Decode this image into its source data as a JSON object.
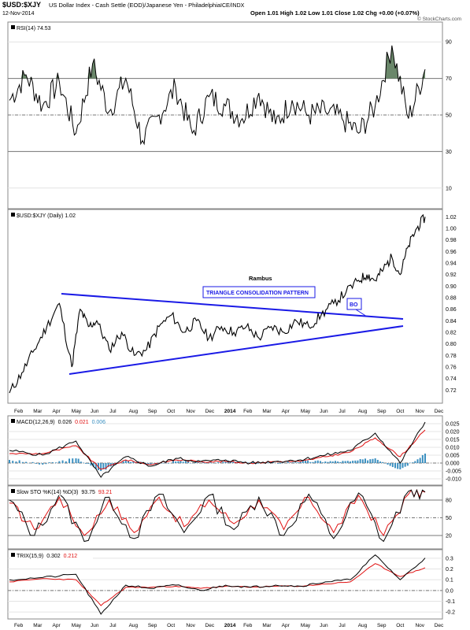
{
  "header": {
    "symbol": "$USD:$XJY",
    "description": "US Dollar Index - Cash Settle (EOD)/Japanese Yen - Philadelphia",
    "exchange": "ICE/INDX",
    "date": "12-Nov-2014",
    "ohlc": "Open 1.01  High 1.02  Low 1.01  Close 1.02  Chg +0.00 (+0.07%)",
    "watermark": "© StockCharts.com"
  },
  "annotations": {
    "rambus": "Rambus",
    "triangle": "TRIANGLE CONSOLIDATION PATTERN",
    "bo": "BO"
  },
  "x_labels_top": [
    "Feb",
    "Mar",
    "Apr",
    "May",
    "Jun",
    "Jul",
    "Aug",
    "Sep",
    "Oct",
    "Nov",
    "Dec",
    "2014",
    "Feb",
    "Mar",
    "Apr",
    "May",
    "Jun",
    "Jul",
    "Aug",
    "Sep",
    "Oct",
    "Nov",
    "Dec"
  ],
  "x_labels_bottom": [
    "Feb",
    "Mar",
    "Apr",
    "May",
    "Jun",
    "Jul",
    "Aug",
    "Sep",
    "Oct",
    "Nov",
    "Dec",
    "2014",
    "Feb",
    "Mar",
    "Apr",
    "May",
    "Jun",
    "Jul",
    "Aug",
    "Sep",
    "Oct",
    "Nov",
    "Dec"
  ],
  "colors": {
    "price": "#000000",
    "rsi": "#000000",
    "rsi_overbought_fill": "#5a7a5a",
    "trendline": "#1a1ae6",
    "signal": "#e01010",
    "histogram": "#3a8fc0",
    "grid": "#d8d8d8"
  },
  "chart_data": [
    {
      "type": "line",
      "id": "rsi",
      "legend": "RSI(14) 74.53",
      "yticks": [
        10,
        30,
        50,
        70,
        90
      ],
      "ylim": [
        0,
        100
      ],
      "reference_lines": [
        30,
        50,
        70
      ],
      "x": [
        0,
        4,
        8,
        12,
        16,
        20,
        24,
        28,
        32,
        36,
        40,
        44,
        48,
        52,
        56,
        60,
        64,
        68,
        72,
        76,
        80,
        84,
        88,
        92,
        96,
        100
      ],
      "values": [
        58,
        72,
        55,
        68,
        40,
        78,
        52,
        70,
        36,
        50,
        65,
        40,
        60,
        55,
        48,
        62,
        45,
        58,
        50,
        52,
        48,
        40,
        55,
        88,
        48,
        75
      ]
    },
    {
      "type": "line",
      "id": "price",
      "legend": "$USD:$XJY (Daily) 1.02",
      "yticks": [
        0.72,
        0.74,
        0.76,
        0.78,
        0.8,
        0.82,
        0.84,
        0.86,
        0.88,
        0.9,
        0.92,
        0.94,
        0.96,
        0.98,
        1.0,
        1.02
      ],
      "ylim": [
        0.7,
        1.03
      ],
      "x": [
        0,
        3,
        6,
        9,
        12,
        15,
        17,
        19,
        21,
        24,
        27,
        30,
        33,
        36,
        39,
        42,
        45,
        48,
        51,
        54,
        57,
        60,
        63,
        66,
        69,
        72,
        75,
        78,
        81,
        84,
        86,
        88,
        90,
        92,
        94,
        96,
        98,
        100
      ],
      "values": [
        0.715,
        0.75,
        0.79,
        0.83,
        0.87,
        0.76,
        0.86,
        0.83,
        0.84,
        0.79,
        0.82,
        0.78,
        0.79,
        0.83,
        0.85,
        0.82,
        0.84,
        0.81,
        0.83,
        0.82,
        0.83,
        0.81,
        0.83,
        0.82,
        0.84,
        0.83,
        0.85,
        0.87,
        0.89,
        0.91,
        0.92,
        0.91,
        0.93,
        0.95,
        0.92,
        0.97,
        1.0,
        1.02
      ]
    },
    {
      "type": "line",
      "id": "macd",
      "legend_name": "MACD(12,26,9)",
      "legend_values": [
        "0.026",
        "0.021",
        "0.006"
      ],
      "yticks": [
        0.025,
        0.02,
        0.015,
        0.01,
        0.005,
        0.0,
        -0.005,
        -0.01
      ],
      "ylim": [
        -0.013,
        0.028
      ],
      "x": [
        0,
        8,
        16,
        22,
        28,
        34,
        40,
        46,
        52,
        58,
        64,
        70,
        76,
        82,
        88,
        94,
        100
      ],
      "series": [
        {
          "values": [
            0.008,
            0.005,
            0.014,
            -0.009,
            0.004,
            -0.002,
            0.003,
            0.001,
            0.002,
            0.0,
            0.001,
            0.002,
            0.005,
            0.008,
            0.019,
            0.0,
            0.026
          ]
        },
        {
          "values": [
            0.006,
            0.006,
            0.011,
            -0.004,
            0.002,
            -0.001,
            0.002,
            0.001,
            0.001,
            0.0,
            0.001,
            0.001,
            0.004,
            0.007,
            0.016,
            0.004,
            0.021
          ]
        }
      ],
      "histogram": [
        0.002,
        -0.001,
        0.003,
        -0.005,
        0.002,
        -0.001,
        0.001,
        0.0,
        0.001,
        0.0,
        0.0,
        0.001,
        0.001,
        0.001,
        0.003,
        -0.004,
        0.006
      ]
    },
    {
      "type": "line",
      "id": "stoch",
      "legend_name": "Slow STO %K(14) %D(3)",
      "legend_values": [
        "93.75",
        "93.21"
      ],
      "yticks": [
        20,
        50,
        80
      ],
      "ylim": [
        0,
        100
      ],
      "reference_lines": [
        20,
        50,
        80
      ],
      "x": [
        0,
        6,
        12,
        18,
        24,
        30,
        36,
        42,
        48,
        54,
        60,
        66,
        72,
        78,
        84,
        90,
        96,
        100
      ],
      "series": [
        {
          "values": [
            80,
            20,
            90,
            10,
            85,
            15,
            90,
            25,
            88,
            30,
            85,
            20,
            90,
            15,
            92,
            10,
            95,
            93.75
          ]
        },
        {
          "values": [
            75,
            30,
            85,
            20,
            80,
            25,
            85,
            35,
            80,
            40,
            80,
            30,
            85,
            25,
            88,
            20,
            90,
            93.21
          ]
        }
      ]
    },
    {
      "type": "line",
      "id": "trix",
      "legend_name": "TRIX(15,9)",
      "legend_values": [
        "0.302",
        "0.212"
      ],
      "yticks": [
        0.3,
        0.2,
        0.1,
        0.0,
        -0.1,
        -0.2
      ],
      "ylim": [
        -0.25,
        0.35
      ],
      "x": [
        0,
        8,
        16,
        22,
        28,
        34,
        40,
        46,
        52,
        58,
        64,
        70,
        76,
        82,
        88,
        94,
        100
      ],
      "series": [
        {
          "values": [
            0.1,
            0.12,
            0.15,
            -0.22,
            0.05,
            0.02,
            0.05,
            0.0,
            0.05,
            0.03,
            0.05,
            0.04,
            0.08,
            0.1,
            0.33,
            0.1,
            0.302
          ]
        },
        {
          "values": [
            0.08,
            0.11,
            0.1,
            -0.14,
            0.03,
            0.03,
            0.04,
            0.02,
            0.04,
            0.03,
            0.04,
            0.04,
            0.06,
            0.08,
            0.25,
            0.13,
            0.212
          ]
        }
      ]
    }
  ]
}
